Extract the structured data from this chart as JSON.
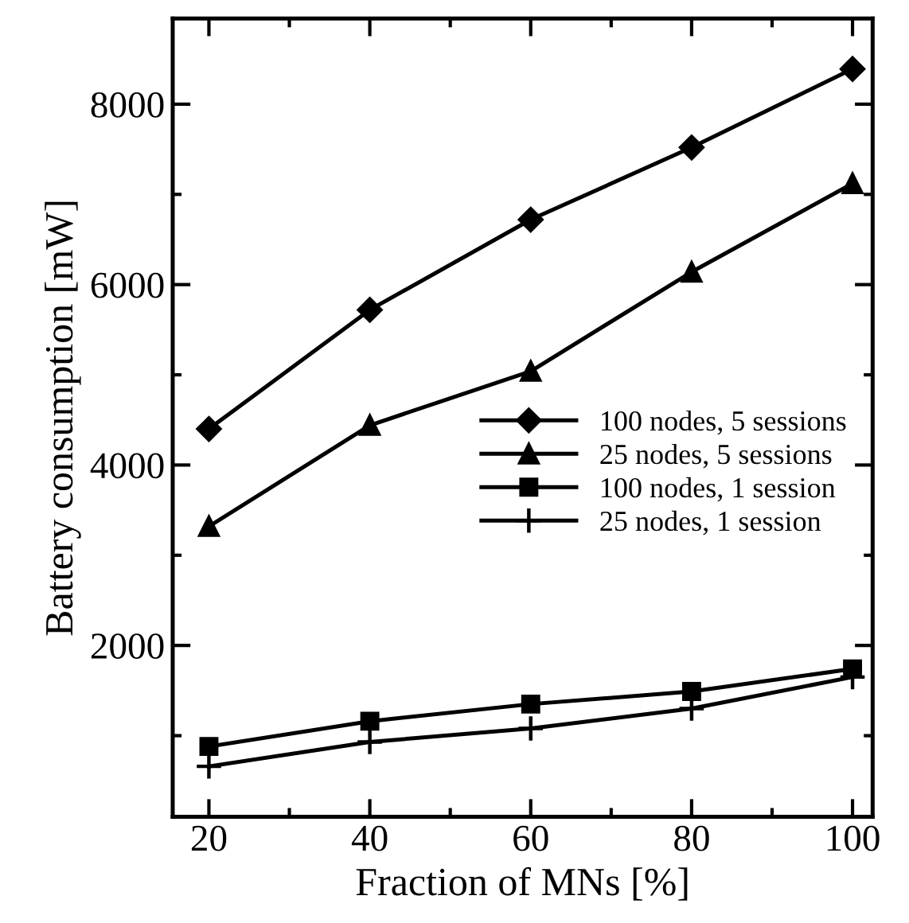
{
  "chart_data": {
    "type": "line",
    "xlabel": "Fraction of MNs [%]",
    "ylabel": "Battery consumption [mW]",
    "x": [
      20,
      40,
      60,
      80,
      100
    ],
    "series": [
      {
        "name": "100 nodes, 5 sessions",
        "color": "#000000",
        "marker": "diamond",
        "values": [
          4400,
          5720,
          6720,
          7520,
          8390
        ]
      },
      {
        "name": "25 nodes, 5 sessions",
        "color": "#000000",
        "marker": "triangle",
        "values": [
          3320,
          4440,
          5040,
          6140,
          7120
        ]
      },
      {
        "name": "100 nodes, 1 session",
        "color": "#000000",
        "marker": "square",
        "values": [
          880,
          1160,
          1350,
          1490,
          1740
        ]
      },
      {
        "name": "25 nodes, 1 session",
        "color": "#000000",
        "marker": "cross",
        "values": [
          660,
          930,
          1080,
          1300,
          1650
        ]
      }
    ],
    "xlim": [
      15.5,
      102.5
    ],
    "xticks": [
      20,
      40,
      60,
      80,
      100
    ],
    "ylim": [
      100,
      8950
    ],
    "yticks": [
      2000,
      4000,
      6000,
      8000
    ],
    "grid": false,
    "legend": "right",
    "line_style": "solid"
  }
}
